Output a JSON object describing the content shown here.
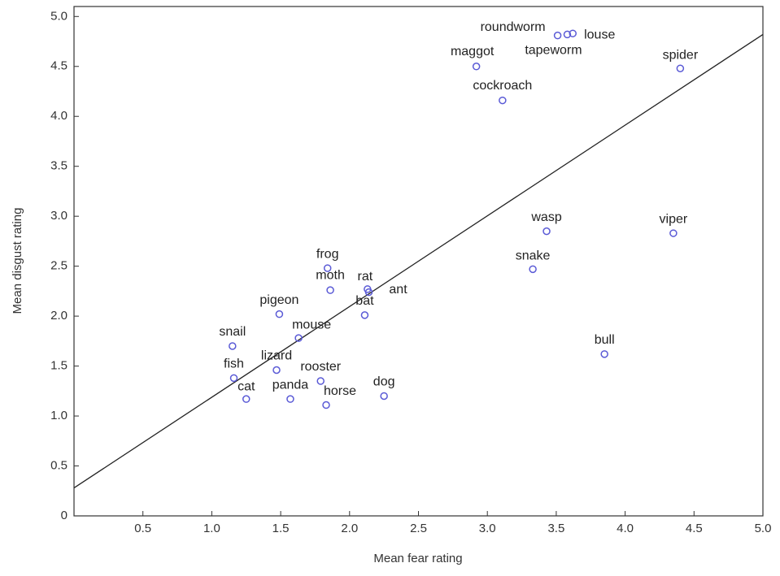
{
  "chart_data": {
    "type": "scatter",
    "x_label": "Mean fear rating",
    "y_label": "Mean disgust rating",
    "labels": [
      "roundworm",
      "tapeworm",
      "louse",
      "maggot",
      "cockroach",
      "spider",
      "wasp",
      "viper",
      "snake",
      "bull",
      "frog",
      "moth",
      "rat",
      "bat",
      "ant",
      "pigeon",
      "mouse",
      "snail",
      "lizard",
      "rooster",
      "fish",
      "cat",
      "panda",
      "horse",
      "dog"
    ],
    "x": [
      3.51,
      3.58,
      3.62,
      2.92,
      3.11,
      4.4,
      3.43,
      4.35,
      3.33,
      3.85,
      1.84,
      1.86,
      2.13,
      2.11,
      2.14,
      1.49,
      1.63,
      1.15,
      1.47,
      1.79,
      1.16,
      1.25,
      1.57,
      1.83,
      2.25
    ],
    "y": [
      4.81,
      4.82,
      4.83,
      4.5,
      4.16,
      4.48,
      2.85,
      2.83,
      2.47,
      1.62,
      2.48,
      2.26,
      2.27,
      2.01,
      2.24,
      2.02,
      1.78,
      1.7,
      1.46,
      1.35,
      1.38,
      1.17,
      1.17,
      1.11,
      1.2
    ],
    "color": "#5a5ad6",
    "trend_line": {
      "x": [
        0,
        5
      ],
      "y": [
        0.28,
        4.82
      ],
      "color": "#222222"
    },
    "xlim": [
      0,
      5
    ],
    "ylim": [
      0,
      5.1
    ],
    "xticks": [
      0.5,
      {
        "value": 1,
        "label": "1.0"
      },
      1.5,
      {
        "value": 2,
        "label": "2.0"
      },
      2.5,
      {
        "value": 3,
        "label": "3.0"
      },
      3.5,
      {
        "value": 4,
        "label": "4.0"
      },
      4.5,
      {
        "value": 5,
        "label": "5.0"
      }
    ],
    "yticks": [
      0,
      0.5,
      {
        "value": 1,
        "label": "1.0"
      },
      1.5,
      {
        "value": 2,
        "label": "2.0"
      },
      2.5,
      {
        "value": 3,
        "label": "3.0"
      },
      3.5,
      {
        "value": 4,
        "label": "4.0"
      },
      4.5,
      {
        "value": 5,
        "label": "5.0"
      }
    ],
    "grid": false
  }
}
